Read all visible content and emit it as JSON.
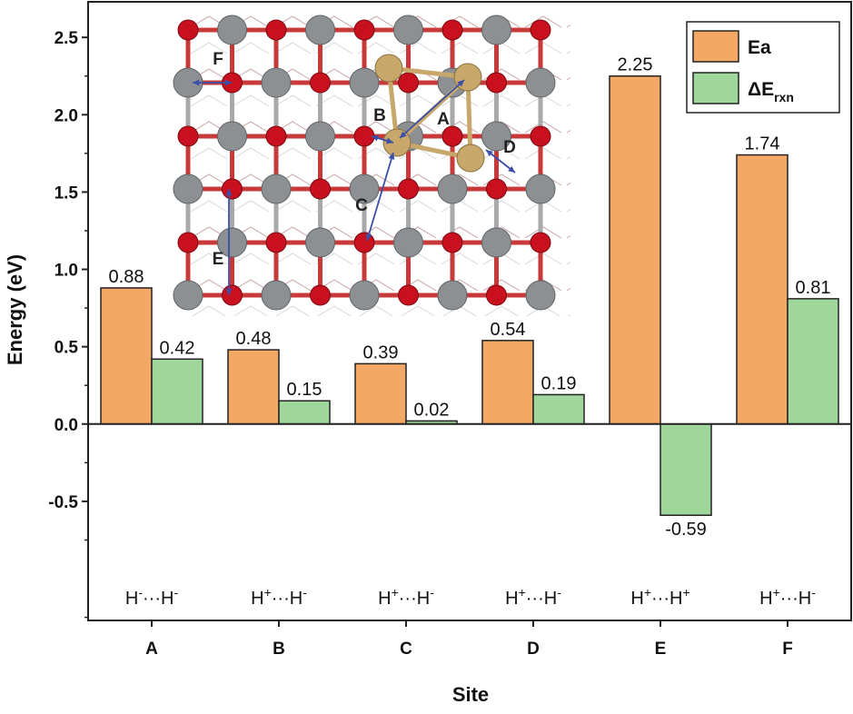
{
  "chart_data": {
    "type": "bar",
    "xlabel": "Site",
    "ylabel": "Energy (eV)",
    "categories": [
      "A",
      "B",
      "C",
      "D",
      "E",
      "F"
    ],
    "series": [
      {
        "name": "Ea",
        "color": "#F4A865",
        "values": [
          0.88,
          0.48,
          0.39,
          0.54,
          2.25,
          1.74
        ]
      },
      {
        "name": "ΔE",
        "name_subscript": "rxn",
        "color": "#9ED69B",
        "values": [
          0.42,
          0.15,
          0.02,
          0.19,
          -0.59,
          0.81
        ]
      }
    ],
    "value_labels": [
      [
        "0.88",
        "0.48",
        "0.39",
        "0.54",
        "2.25",
        "1.74"
      ],
      [
        "0.42",
        "0.15",
        "0.02",
        "0.19",
        "-0.59",
        "0.81"
      ]
    ],
    "yticks": [
      "2.5",
      "2.0",
      "1.5",
      "1.0",
      "0.5",
      "0.0",
      "-0.5"
    ],
    "ytick_values": [
      2.5,
      2.0,
      1.5,
      1.0,
      0.5,
      0.0,
      -0.5
    ],
    "ylim": [
      -1.27,
      2.73
    ],
    "pair_labels": [
      [
        "H",
        "-",
        "H",
        "-"
      ],
      [
        "H",
        "+",
        "H",
        "-"
      ],
      [
        "H",
        "+",
        "H",
        "-"
      ],
      [
        "H",
        "+",
        "H",
        "-"
      ],
      [
        "H",
        "+",
        "H",
        "+"
      ],
      [
        "H",
        "+",
        "H",
        "-"
      ]
    ],
    "pair_separator": "···",
    "legend_position": "top-right",
    "grid": false
  },
  "inset": {
    "site_letters": [
      "A",
      "B",
      "C",
      "D",
      "E",
      "F"
    ],
    "colors": {
      "metal": "#8C9093",
      "oxygen": "#C8101E",
      "adsorbate": "#C8A86A",
      "arrow": "#3B4FA8",
      "bond": "#C83A3A"
    }
  }
}
